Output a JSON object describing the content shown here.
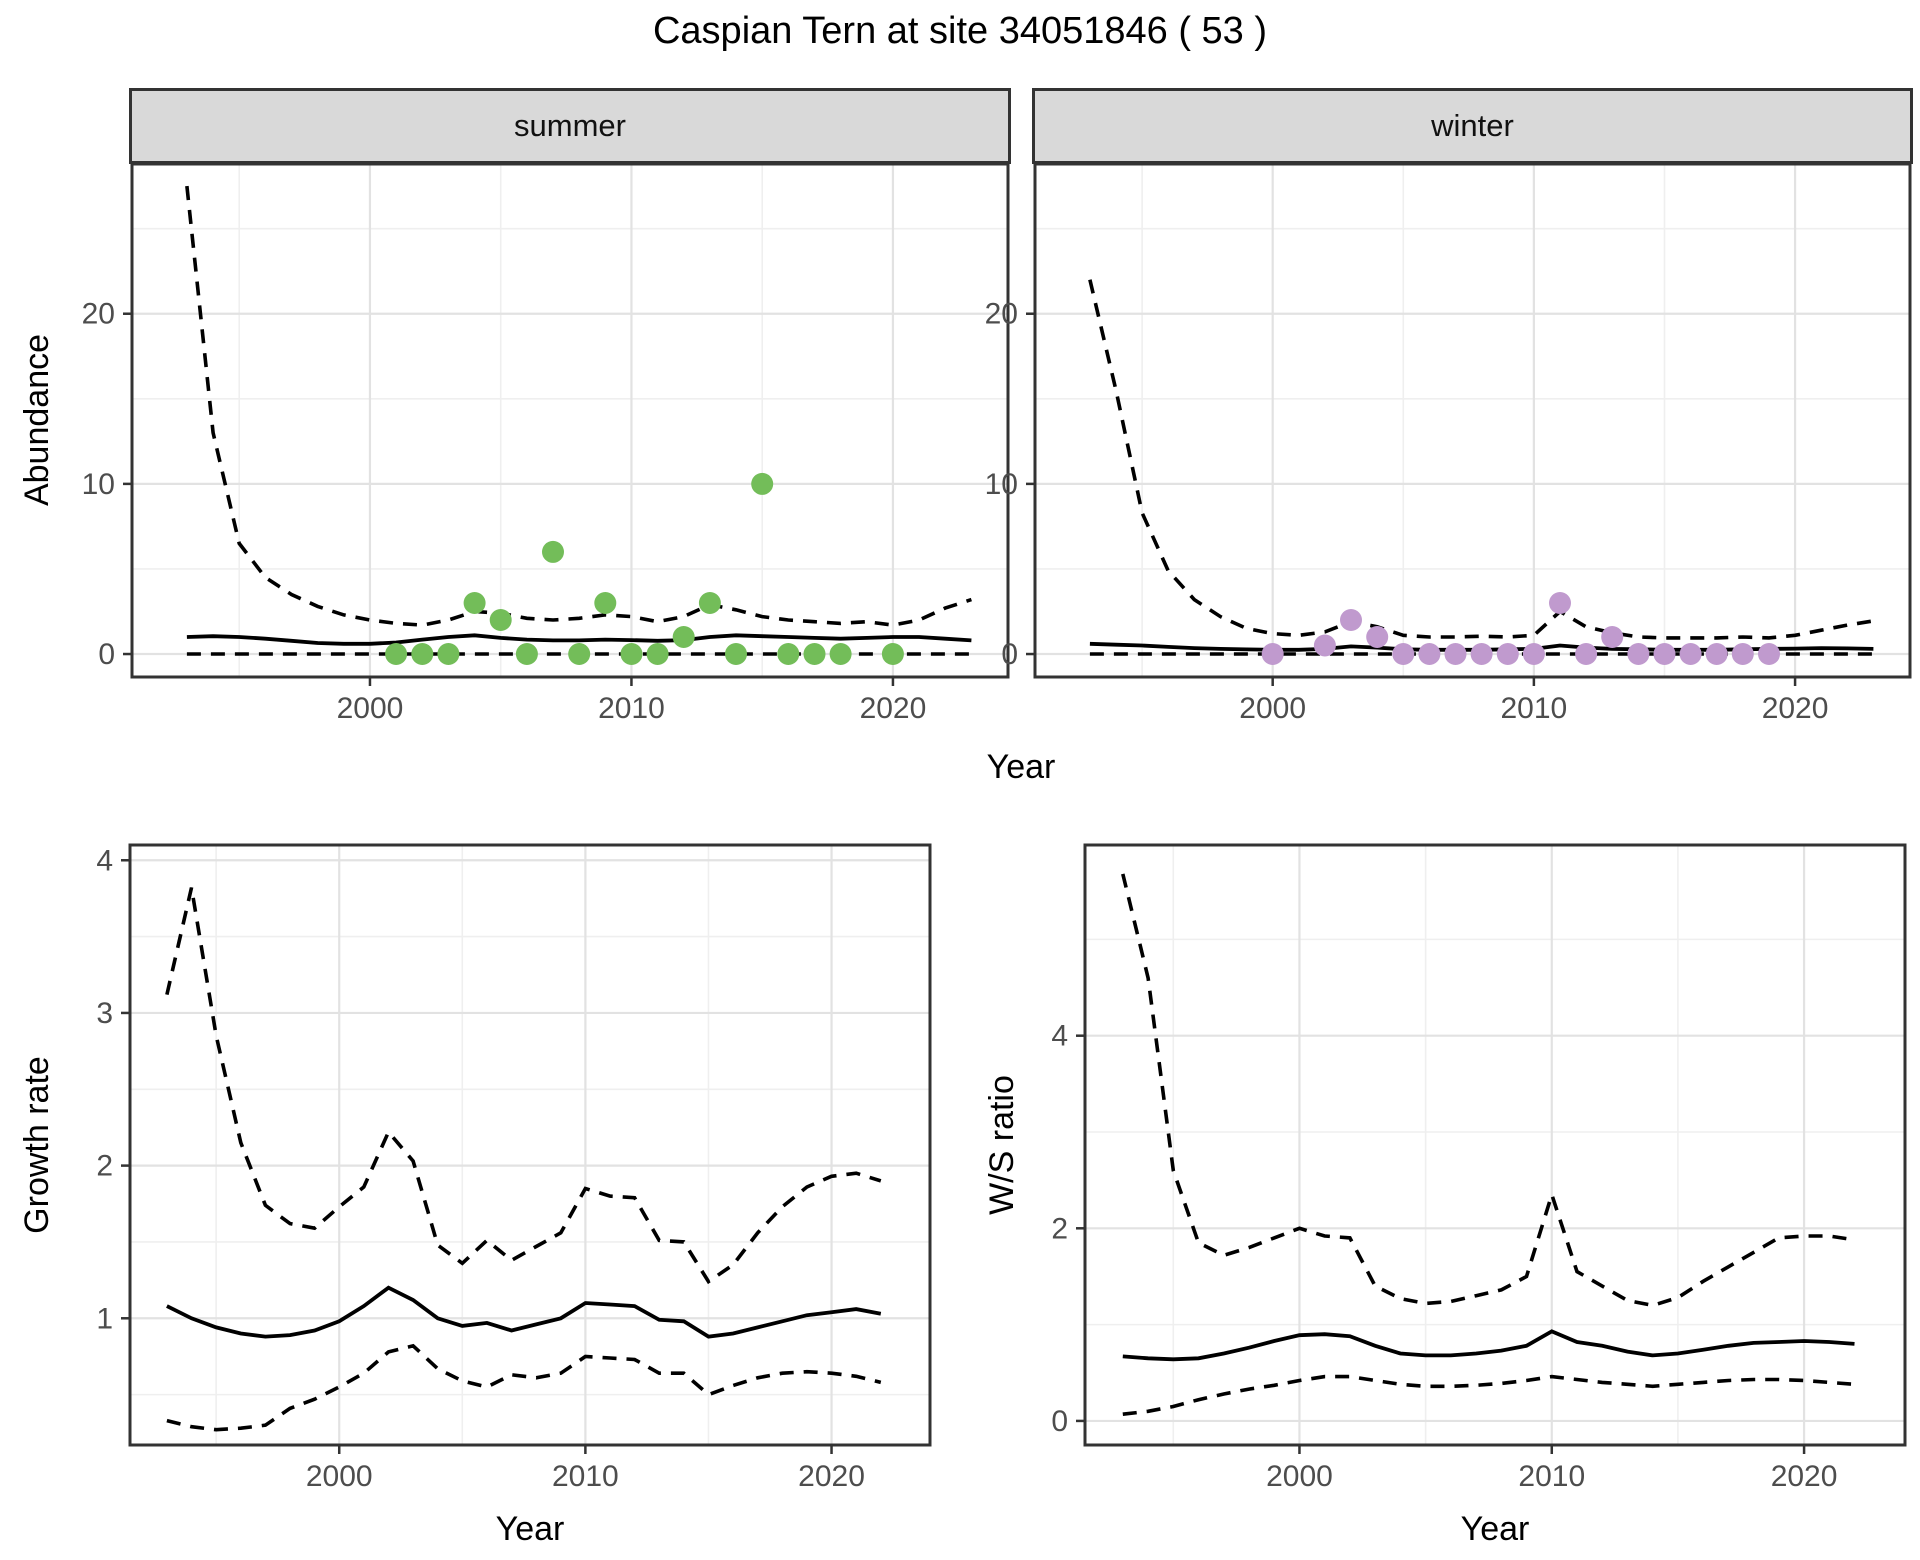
{
  "title": "Caspian Tern at site 34051846 ( 53 )",
  "labels": {
    "year": "Year",
    "abundance": "Abundance",
    "growth": "Growth rate",
    "ws": "W/S ratio"
  },
  "colors": {
    "summer_point": "#73bd59",
    "winter_point": "#c09ace",
    "median_line": "#000000",
    "ci_line": "#000000",
    "strip_bg": "#d9d9d9",
    "panel_border": "#333333",
    "grid_major": "#e2e2e2",
    "grid_minor": "#efefef",
    "axis_text": "#4d4d4d"
  },
  "chart_data": [
    {
      "type": "scatter",
      "panel_key": "summer",
      "facet_label": "summer",
      "xlabel": "Year",
      "ylabel": "Abundance",
      "xlim": [
        1990.9,
        2024.4
      ],
      "ylim": [
        -1.35,
        28.8
      ],
      "xticks": [
        2000,
        2010,
        2020
      ],
      "yticks": [
        0,
        10,
        20
      ],
      "xticks_minor": [
        1995,
        2005,
        2015
      ],
      "yticks_minor": [
        5,
        15,
        25
      ],
      "points": {
        "years": [
          2001,
          2002,
          2003,
          2004,
          2005,
          2006,
          2007,
          2008,
          2009,
          2010,
          2011,
          2012,
          2013,
          2014,
          2015,
          2016,
          2017,
          2018,
          2020
        ],
        "values": [
          0,
          0,
          0,
          3,
          2,
          0,
          6,
          0,
          3,
          0,
          0,
          1,
          3,
          0,
          10,
          0,
          0,
          0,
          0
        ]
      },
      "median": {
        "years": [
          1993,
          1994,
          1995,
          1996,
          1997,
          1998,
          1999,
          2000,
          2001,
          2002,
          2003,
          2004,
          2005,
          2006,
          2007,
          2008,
          2009,
          2010,
          2011,
          2012,
          2013,
          2014,
          2015,
          2016,
          2017,
          2018,
          2019,
          2020,
          2021,
          2022,
          2023
        ],
        "values": [
          1.0,
          1.05,
          1.0,
          0.9,
          0.78,
          0.65,
          0.6,
          0.6,
          0.68,
          0.85,
          1.0,
          1.1,
          0.95,
          0.85,
          0.8,
          0.8,
          0.85,
          0.82,
          0.78,
          0.82,
          1.0,
          1.1,
          1.05,
          1.0,
          0.95,
          0.9,
          0.95,
          1.0,
          1.0,
          0.9,
          0.8
        ]
      },
      "upper": {
        "years": [
          1993,
          1994,
          1995,
          1996,
          1997,
          1998,
          1999,
          2000,
          2001,
          2002,
          2003,
          2004,
          2005,
          2006,
          2007,
          2008,
          2009,
          2010,
          2011,
          2012,
          2013,
          2014,
          2015,
          2016,
          2017,
          2018,
          2019,
          2020,
          2021,
          2022,
          2023
        ],
        "values": [
          27.5,
          13,
          6.5,
          4.5,
          3.5,
          2.8,
          2.3,
          2.0,
          1.8,
          1.7,
          2.0,
          2.5,
          2.4,
          2.1,
          2.0,
          2.1,
          2.3,
          2.2,
          1.9,
          2.2,
          2.9,
          2.6,
          2.2,
          2.0,
          1.9,
          1.8,
          1.9,
          1.7,
          2.0,
          2.7,
          3.2
        ]
      },
      "lower": {
        "years": [
          1993,
          1994,
          1995,
          1996,
          1997,
          1998,
          1999,
          2000,
          2001,
          2002,
          2003,
          2004,
          2005,
          2006,
          2007,
          2008,
          2009,
          2010,
          2011,
          2012,
          2013,
          2014,
          2015,
          2016,
          2017,
          2018,
          2019,
          2020,
          2021,
          2022,
          2023
        ],
        "values": [
          0,
          0,
          0,
          0,
          0,
          0,
          0,
          0,
          0,
          0,
          0,
          0,
          0,
          0,
          0,
          0,
          0,
          0,
          0,
          0,
          0,
          0,
          0,
          0,
          0,
          0,
          0,
          0,
          0,
          0,
          0
        ]
      }
    },
    {
      "type": "scatter",
      "panel_key": "winter",
      "facet_label": "winter",
      "xlabel": "Year",
      "ylabel": "Abundance",
      "xlim": [
        1990.9,
        2024.4
      ],
      "ylim": [
        -1.35,
        28.8
      ],
      "xticks": [
        2000,
        2010,
        2020
      ],
      "yticks": [
        0,
        10,
        20
      ],
      "xticks_minor": [
        1995,
        2005,
        2015
      ],
      "yticks_minor": [
        5,
        15,
        25
      ],
      "points": {
        "years": [
          2000,
          2002,
          2003,
          2004,
          2005,
          2006,
          2007,
          2008,
          2009,
          2010,
          2011,
          2012,
          2013,
          2014,
          2015,
          2016,
          2017,
          2018,
          2019
        ],
        "values": [
          0,
          0.5,
          2,
          1,
          0,
          0,
          0,
          0,
          0,
          0,
          3,
          0,
          1,
          0,
          0,
          0,
          0,
          0,
          0
        ]
      },
      "median": {
        "years": [
          1993,
          1994,
          1995,
          1996,
          1997,
          1998,
          1999,
          2000,
          2001,
          2002,
          2003,
          2004,
          2005,
          2006,
          2007,
          2008,
          2009,
          2010,
          2011,
          2012,
          2013,
          2014,
          2015,
          2016,
          2017,
          2018,
          2019,
          2020,
          2021,
          2022,
          2023
        ],
        "values": [
          0.6,
          0.55,
          0.5,
          0.42,
          0.35,
          0.3,
          0.27,
          0.25,
          0.25,
          0.3,
          0.45,
          0.38,
          0.28,
          0.25,
          0.25,
          0.25,
          0.28,
          0.3,
          0.5,
          0.38,
          0.3,
          0.28,
          0.25,
          0.25,
          0.25,
          0.28,
          0.3,
          0.32,
          0.35,
          0.33,
          0.3
        ]
      },
      "upper": {
        "years": [
          1993,
          1994,
          1995,
          1996,
          1997,
          1998,
          1999,
          2000,
          2001,
          2002,
          2003,
          2004,
          2005,
          2006,
          2007,
          2008,
          2009,
          2010,
          2011,
          2012,
          2013,
          2014,
          2015,
          2016,
          2017,
          2018,
          2019,
          2020,
          2021,
          2022,
          2023
        ],
        "values": [
          22,
          15.5,
          8.3,
          4.9,
          3.2,
          2.2,
          1.5,
          1.2,
          1.1,
          1.3,
          1.9,
          1.6,
          1.1,
          1.0,
          1.0,
          1.05,
          1.0,
          1.1,
          2.5,
          1.6,
          1.25,
          1.0,
          0.95,
          0.95,
          0.95,
          1.0,
          0.95,
          1.1,
          1.4,
          1.7,
          1.95
        ]
      },
      "lower": {
        "years": [
          1993,
          1994,
          1995,
          1996,
          1997,
          1998,
          1999,
          2000,
          2001,
          2002,
          2003,
          2004,
          2005,
          2006,
          2007,
          2008,
          2009,
          2010,
          2011,
          2012,
          2013,
          2014,
          2015,
          2016,
          2017,
          2018,
          2019,
          2020,
          2021,
          2022,
          2023
        ],
        "values": [
          0,
          0,
          0,
          0,
          0,
          0,
          0,
          0,
          0,
          0,
          0,
          0,
          0,
          0,
          0,
          0,
          0,
          0,
          0,
          0,
          0,
          0,
          0,
          0,
          0,
          0,
          0,
          0,
          0,
          0,
          0
        ]
      }
    },
    {
      "type": "line",
      "panel_key": "growth",
      "xlabel": "Year",
      "ylabel": "Growth rate",
      "xlim": [
        1991.5,
        2024.0
      ],
      "ylim": [
        0.17,
        4.1
      ],
      "xticks": [
        2000,
        2010,
        2020
      ],
      "yticks": [
        1,
        2,
        3,
        4
      ],
      "xticks_minor": [
        1995,
        2005,
        2015
      ],
      "yticks_minor": [
        0.5,
        1.5,
        2.5,
        3.5
      ],
      "median": {
        "years": [
          1993,
          1994,
          1995,
          1996,
          1997,
          1998,
          1999,
          2000,
          2001,
          2002,
          2003,
          2004,
          2005,
          2006,
          2007,
          2008,
          2009,
          2010,
          2011,
          2012,
          2013,
          2014,
          2015,
          2016,
          2017,
          2018,
          2019,
          2020,
          2021,
          2022
        ],
        "values": [
          1.08,
          1.0,
          0.94,
          0.9,
          0.88,
          0.89,
          0.92,
          0.98,
          1.08,
          1.2,
          1.12,
          1.0,
          0.95,
          0.97,
          0.92,
          0.96,
          1.0,
          1.1,
          1.09,
          1.08,
          0.99,
          0.98,
          0.88,
          0.9,
          0.94,
          0.98,
          1.02,
          1.04,
          1.06,
          1.03
        ]
      },
      "upper": {
        "years": [
          1993,
          1994,
          1995,
          1996,
          1997,
          1998,
          1999,
          2000,
          2001,
          2002,
          2003,
          2004,
          2005,
          2006,
          2007,
          2008,
          2009,
          2010,
          2011,
          2012,
          2013,
          2014,
          2015,
          2016,
          2017,
          2018,
          2019,
          2020,
          2021,
          2022
        ],
        "values": [
          3.12,
          3.82,
          2.85,
          2.15,
          1.74,
          1.62,
          1.59,
          1.73,
          1.86,
          2.22,
          2.03,
          1.48,
          1.36,
          1.51,
          1.38,
          1.47,
          1.56,
          1.85,
          1.8,
          1.79,
          1.51,
          1.5,
          1.24,
          1.35,
          1.56,
          1.73,
          1.86,
          1.93,
          1.95,
          1.9
        ]
      },
      "lower": {
        "years": [
          1993,
          1994,
          1995,
          1996,
          1997,
          1998,
          1999,
          2000,
          2001,
          2002,
          2003,
          2004,
          2005,
          2006,
          2007,
          2008,
          2009,
          2010,
          2011,
          2012,
          2013,
          2014,
          2015,
          2016,
          2017,
          2018,
          2019,
          2020,
          2021,
          2022
        ],
        "values": [
          0.33,
          0.29,
          0.27,
          0.28,
          0.3,
          0.41,
          0.47,
          0.55,
          0.64,
          0.78,
          0.82,
          0.67,
          0.59,
          0.55,
          0.63,
          0.61,
          0.64,
          0.75,
          0.74,
          0.73,
          0.64,
          0.64,
          0.5,
          0.56,
          0.61,
          0.64,
          0.65,
          0.64,
          0.62,
          0.58
        ]
      }
    },
    {
      "type": "line",
      "panel_key": "ws",
      "xlabel": "Year",
      "ylabel": "W/S ratio",
      "xlim": [
        1991.5,
        2024.0
      ],
      "ylim": [
        -0.25,
        5.98
      ],
      "xticks": [
        2000,
        2010,
        2020
      ],
      "yticks": [
        0,
        2,
        4
      ],
      "xticks_minor": [
        1995,
        2005,
        2015
      ],
      "yticks_minor": [
        1,
        3,
        5
      ],
      "median": {
        "years": [
          1993,
          1994,
          1995,
          1996,
          1997,
          1998,
          1999,
          2000,
          2001,
          2002,
          2003,
          2004,
          2005,
          2006,
          2007,
          2008,
          2009,
          2010,
          2011,
          2012,
          2013,
          2014,
          2015,
          2016,
          2017,
          2018,
          2019,
          2020,
          2021,
          2022
        ],
        "values": [
          0.67,
          0.65,
          0.64,
          0.65,
          0.7,
          0.76,
          0.83,
          0.89,
          0.9,
          0.88,
          0.78,
          0.7,
          0.68,
          0.68,
          0.7,
          0.73,
          0.78,
          0.93,
          0.82,
          0.78,
          0.72,
          0.68,
          0.7,
          0.74,
          0.78,
          0.81,
          0.82,
          0.83,
          0.82,
          0.8
        ]
      },
      "upper": {
        "years": [
          1993,
          1994,
          1995,
          1996,
          1997,
          1998,
          1999,
          2000,
          2001,
          2002,
          2003,
          2004,
          2005,
          2006,
          2007,
          2008,
          2009,
          2010,
          2011,
          2012,
          2013,
          2014,
          2015,
          2016,
          2017,
          2018,
          2019,
          2020,
          2021,
          2022
        ],
        "values": [
          5.68,
          4.6,
          2.6,
          1.85,
          1.72,
          1.8,
          1.9,
          2.0,
          1.92,
          1.9,
          1.4,
          1.27,
          1.22,
          1.24,
          1.3,
          1.36,
          1.5,
          2.35,
          1.55,
          1.4,
          1.25,
          1.2,
          1.28,
          1.45,
          1.6,
          1.75,
          1.9,
          1.92,
          1.92,
          1.88
        ]
      },
      "lower": {
        "years": [
          1993,
          1994,
          1995,
          1996,
          1997,
          1998,
          1999,
          2000,
          2001,
          2002,
          2003,
          2004,
          2005,
          2006,
          2007,
          2008,
          2009,
          2010,
          2011,
          2012,
          2013,
          2014,
          2015,
          2016,
          2017,
          2018,
          2019,
          2020,
          2021,
          2022
        ],
        "values": [
          0.07,
          0.1,
          0.15,
          0.22,
          0.28,
          0.33,
          0.37,
          0.42,
          0.46,
          0.46,
          0.42,
          0.38,
          0.36,
          0.36,
          0.37,
          0.39,
          0.42,
          0.46,
          0.43,
          0.4,
          0.38,
          0.36,
          0.38,
          0.4,
          0.42,
          0.43,
          0.43,
          0.42,
          0.4,
          0.38
        ]
      }
    }
  ]
}
